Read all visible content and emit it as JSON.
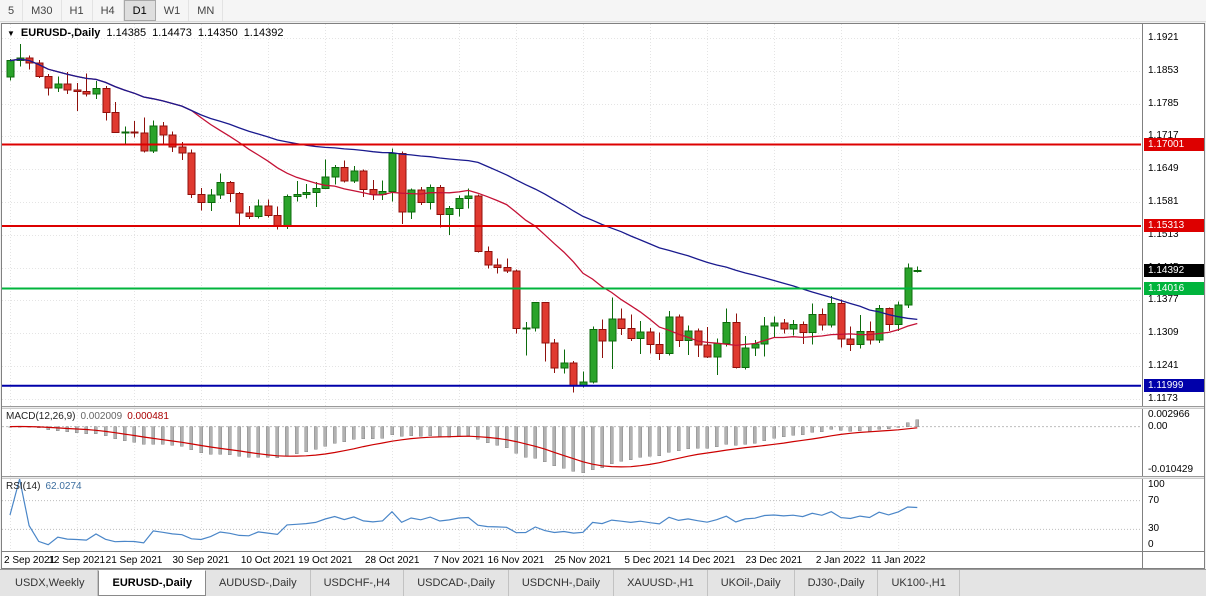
{
  "toolbar": {
    "timeframes": [
      "5",
      "M30",
      "H1",
      "H4",
      "D1",
      "W1",
      "MN"
    ],
    "active": "D1"
  },
  "chart": {
    "symbol_period": "EURUSD-,Daily",
    "open": "1.14385",
    "high": "1.14473",
    "low": "1.14350",
    "close": "1.14392",
    "dropdown_icon": "▼"
  },
  "chart_data": {
    "type": "candlestick",
    "symbol": "EURUSD",
    "timeframe": "Daily",
    "ylim": [
      1.1158,
      1.195
    ],
    "grid_prices": [
      1.1921,
      1.1853,
      1.1785,
      1.1717,
      1.1649,
      1.1581,
      1.1513,
      1.1445,
      1.1377,
      1.1309,
      1.1241,
      1.1173
    ],
    "axis_labels": [
      "1.1921",
      "1.1853",
      "1.1785",
      "1.1717",
      "1.1649",
      "1.1581",
      "1.1513",
      "1.1445",
      "1.1377",
      "1.1309",
      "1.1241",
      "1.1173"
    ],
    "candles": [
      [
        1.184,
        1.1877,
        1.1833,
        1.1874
      ],
      [
        1.1874,
        1.1909,
        1.1862,
        1.188
      ],
      [
        1.188,
        1.1885,
        1.1856,
        1.1869
      ],
      [
        1.1869,
        1.1875,
        1.1838,
        1.1841
      ],
      [
        1.1841,
        1.1846,
        1.1802,
        1.1817
      ],
      [
        1.1817,
        1.1841,
        1.1809,
        1.1826
      ],
      [
        1.1826,
        1.1851,
        1.1805,
        1.1813
      ],
      [
        1.1813,
        1.1828,
        1.177,
        1.181
      ],
      [
        1.181,
        1.1847,
        1.18,
        1.1805
      ],
      [
        1.1805,
        1.1832,
        1.1795,
        1.1816
      ],
      [
        1.1816,
        1.1821,
        1.175,
        1.1766
      ],
      [
        1.1766,
        1.1788,
        1.1724,
        1.1725
      ],
      [
        1.1725,
        1.1737,
        1.17,
        1.1726
      ],
      [
        1.1726,
        1.1749,
        1.1715,
        1.1724
      ],
      [
        1.1724,
        1.1756,
        1.1684,
        1.1687
      ],
      [
        1.1687,
        1.175,
        1.1683,
        1.1739
      ],
      [
        1.1739,
        1.1747,
        1.1701,
        1.172
      ],
      [
        1.172,
        1.1727,
        1.1685,
        1.1695
      ],
      [
        1.1695,
        1.1705,
        1.1668,
        1.1683
      ],
      [
        1.1683,
        1.169,
        1.1589,
        1.1597
      ],
      [
        1.1597,
        1.161,
        1.1563,
        1.158
      ],
      [
        1.158,
        1.1608,
        1.1562,
        1.1595
      ],
      [
        1.1595,
        1.164,
        1.1587,
        1.1621
      ],
      [
        1.1621,
        1.1625,
        1.1581,
        1.1599
      ],
      [
        1.1599,
        1.1602,
        1.1529,
        1.1558
      ],
      [
        1.1558,
        1.1573,
        1.1546,
        1.1551
      ],
      [
        1.1551,
        1.1586,
        1.1547,
        1.1573
      ],
      [
        1.1573,
        1.1586,
        1.1549,
        1.1553
      ],
      [
        1.1553,
        1.1572,
        1.1524,
        1.153
      ],
      [
        1.153,
        1.1597,
        1.1525,
        1.1592
      ],
      [
        1.1592,
        1.1624,
        1.1582,
        1.1596
      ],
      [
        1.1596,
        1.1618,
        1.1588,
        1.1601
      ],
      [
        1.1601,
        1.1622,
        1.1571,
        1.1609
      ],
      [
        1.1609,
        1.1669,
        1.1608,
        1.1633
      ],
      [
        1.1633,
        1.1658,
        1.1617,
        1.1652
      ],
      [
        1.1652,
        1.1667,
        1.1621,
        1.1624
      ],
      [
        1.1624,
        1.1656,
        1.162,
        1.1645
      ],
      [
        1.1645,
        1.1648,
        1.1591,
        1.1607
      ],
      [
        1.1607,
        1.1627,
        1.1585,
        1.1596
      ],
      [
        1.1596,
        1.1626,
        1.1585,
        1.1603
      ],
      [
        1.1603,
        1.1692,
        1.1582,
        1.1681
      ],
      [
        1.1681,
        1.1686,
        1.1535,
        1.156
      ],
      [
        1.156,
        1.1609,
        1.1546,
        1.1606
      ],
      [
        1.1606,
        1.1612,
        1.1575,
        1.158
      ],
      [
        1.158,
        1.1617,
        1.1565,
        1.1611
      ],
      [
        1.1611,
        1.1616,
        1.1528,
        1.1555
      ],
      [
        1.1555,
        1.1573,
        1.1513,
        1.1567
      ],
      [
        1.1567,
        1.1594,
        1.1551,
        1.1588
      ],
      [
        1.1588,
        1.1609,
        1.1567,
        1.1593
      ],
      [
        1.1593,
        1.1597,
        1.1476,
        1.1478
      ],
      [
        1.1478,
        1.1489,
        1.1443,
        1.145
      ],
      [
        1.145,
        1.1464,
        1.1433,
        1.1445
      ],
      [
        1.1445,
        1.1464,
        1.1434,
        1.1438
      ],
      [
        1.1438,
        1.1441,
        1.1308,
        1.1319
      ],
      [
        1.1319,
        1.1332,
        1.1263,
        1.132
      ],
      [
        1.132,
        1.1374,
        1.1312,
        1.1373
      ],
      [
        1.1373,
        1.1374,
        1.125,
        1.1289
      ],
      [
        1.1289,
        1.1297,
        1.1226,
        1.1237
      ],
      [
        1.1237,
        1.1275,
        1.1225,
        1.1247
      ],
      [
        1.1247,
        1.1251,
        1.1186,
        1.12
      ],
      [
        1.12,
        1.123,
        1.1196,
        1.1208
      ],
      [
        1.1208,
        1.1323,
        1.1205,
        1.1317
      ],
      [
        1.1317,
        1.1337,
        1.1258,
        1.1293
      ],
      [
        1.1293,
        1.1383,
        1.1235,
        1.1338
      ],
      [
        1.1338,
        1.136,
        1.1305,
        1.1319
      ],
      [
        1.1319,
        1.1348,
        1.1293,
        1.1298
      ],
      [
        1.1298,
        1.1334,
        1.1266,
        1.1311
      ],
      [
        1.1311,
        1.132,
        1.1267,
        1.1286
      ],
      [
        1.1286,
        1.131,
        1.1253,
        1.1267
      ],
      [
        1.1267,
        1.1355,
        1.1263,
        1.1343
      ],
      [
        1.1343,
        1.1348,
        1.128,
        1.1294
      ],
      [
        1.1294,
        1.1325,
        1.1264,
        1.1313
      ],
      [
        1.1313,
        1.1319,
        1.126,
        1.1284
      ],
      [
        1.1284,
        1.1322,
        1.1258,
        1.126
      ],
      [
        1.126,
        1.1298,
        1.1222,
        1.1288
      ],
      [
        1.1288,
        1.136,
        1.1281,
        1.1331
      ],
      [
        1.1331,
        1.135,
        1.1236,
        1.1238
      ],
      [
        1.1238,
        1.1303,
        1.1234,
        1.1278
      ],
      [
        1.1278,
        1.1295,
        1.1262,
        1.1287
      ],
      [
        1.1287,
        1.1343,
        1.1261,
        1.1324
      ],
      [
        1.1324,
        1.1344,
        1.13,
        1.133
      ],
      [
        1.133,
        1.1338,
        1.1308,
        1.1318
      ],
      [
        1.1318,
        1.1336,
        1.1304,
        1.1327
      ],
      [
        1.1327,
        1.1333,
        1.1287,
        1.131
      ],
      [
        1.131,
        1.137,
        1.1286,
        1.1348
      ],
      [
        1.1348,
        1.136,
        1.1315,
        1.1326
      ],
      [
        1.1326,
        1.1386,
        1.1321,
        1.137
      ],
      [
        1.137,
        1.1379,
        1.1279,
        1.1297
      ],
      [
        1.1297,
        1.1323,
        1.1272,
        1.1285
      ],
      [
        1.1285,
        1.1347,
        1.1277,
        1.1312
      ],
      [
        1.1312,
        1.1333,
        1.1285,
        1.1295
      ],
      [
        1.1295,
        1.1367,
        1.1289,
        1.136
      ],
      [
        1.136,
        1.1362,
        1.1313,
        1.1327
      ],
      [
        1.1327,
        1.1375,
        1.1314,
        1.1367
      ],
      [
        1.1367,
        1.1453,
        1.1361,
        1.1444
      ],
      [
        1.14385,
        1.14473,
        1.1435,
        1.14392
      ]
    ],
    "x_labels": [
      {
        "text": "2 Sep 2021",
        "i": 0
      },
      {
        "text": "12 Sep 2021",
        "i": 7
      },
      {
        "text": "21 Sep 2021",
        "i": 13
      },
      {
        "text": "30 Sep 2021",
        "i": 20
      },
      {
        "text": "10 Oct 2021",
        "i": 27
      },
      {
        "text": "19 Oct 2021",
        "i": 33
      },
      {
        "text": "28 Oct 2021",
        "i": 40
      },
      {
        "text": "7 Nov 2021",
        "i": 47
      },
      {
        "text": "16 Nov 2021",
        "i": 53
      },
      {
        "text": "25 Nov 2021",
        "i": 60
      },
      {
        "text": "5 Dec 2021",
        "i": 67
      },
      {
        "text": "14 Dec 2021",
        "i": 73
      },
      {
        "text": "23 Dec 2021",
        "i": 80
      },
      {
        "text": "2 Jan 2022",
        "i": 87
      },
      {
        "text": "11 Jan 2022",
        "i": 93
      }
    ],
    "moving_averages": [
      {
        "name": "ma-fast",
        "period": 20,
        "color": "#c41236"
      },
      {
        "name": "ma-slow",
        "period": 50,
        "color": "#1a1a8e"
      }
    ],
    "hlines": [
      {
        "price": 1.17001,
        "label": "1.17001",
        "color": "#dd0000"
      },
      {
        "price": 1.15313,
        "label": "1.15313",
        "color": "#dd0000"
      },
      {
        "price": 1.14016,
        "label": "1.14016",
        "color": "#00b43c"
      },
      {
        "price": 1.11999,
        "label": "1.11999",
        "color": "#0000aa"
      }
    ],
    "current_price": {
      "value": 1.14392,
      "label": "1.14392",
      "color": "#000000"
    }
  },
  "macd": {
    "name": "MACD(12,26,9)",
    "value_main": "0.002009",
    "value_signal": "0.000481",
    "params": {
      "fast": 12,
      "slow": 26,
      "signal": 9
    },
    "ylim": [
      -0.0112,
      0.004
    ],
    "axis_labels": [
      {
        "text": "0.002966",
        "value": 0.002966
      },
      {
        "text": "0.00",
        "value": 0
      },
      {
        "text": "-0.010429",
        "value": -0.010429
      }
    ]
  },
  "rsi": {
    "name": "RSI(14)",
    "value": "62.0274",
    "period": 14,
    "ylim": [
      0,
      100
    ],
    "levels": [
      70,
      30
    ],
    "axis_labels": [
      {
        "text": "100",
        "value": 100
      },
      {
        "text": "70",
        "value": 70
      },
      {
        "text": "30",
        "value": 30
      },
      {
        "text": "0",
        "value": 0
      }
    ]
  },
  "tabs": {
    "items": [
      {
        "label": "USDX,Weekly"
      },
      {
        "label": "EURUSD-,Daily",
        "active": true
      },
      {
        "label": "AUDUSD-,Daily"
      },
      {
        "label": "USDCHF-,H4"
      },
      {
        "label": "USDCAD-,Daily"
      },
      {
        "label": "USDCNH-,Daily"
      },
      {
        "label": "XAUUSD-,H1"
      },
      {
        "label": "UKOil-,Daily"
      },
      {
        "label": "DJ30-,Daily"
      },
      {
        "label": "UK100-,H1"
      }
    ]
  },
  "colors": {
    "up_fill": "#2aa32a",
    "up_edge": "#0c6b0c",
    "down_fill": "#e03a30",
    "down_edge": "#8f100c",
    "grid": "#e4e4e4",
    "macd_hist": "#b2b2b2",
    "macd_signal": "#cc0000",
    "rsi_line": "#4a86c8"
  }
}
